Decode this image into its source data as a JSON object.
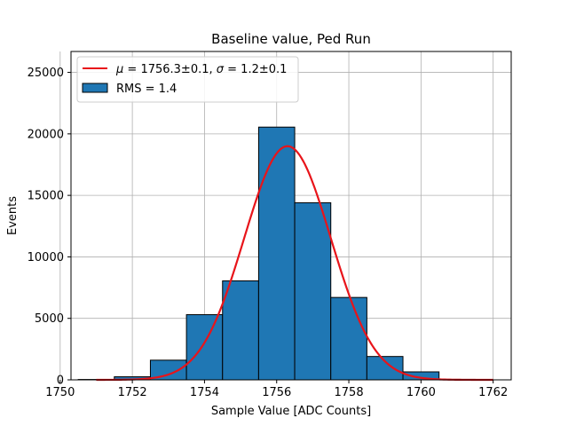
{
  "chart_data": {
    "type": "bar",
    "title": "Baseline value, Ped Run",
    "xlabel": "Sample Value [ADC Counts]",
    "ylabel": "Events",
    "xlim": [
      1750.3,
      1762.5
    ],
    "ylim": [
      0,
      26700
    ],
    "xticks": [
      1750,
      1752,
      1754,
      1756,
      1758,
      1760,
      1762
    ],
    "yticks": [
      0,
      5000,
      10000,
      15000,
      20000,
      25000
    ],
    "grid": true,
    "legend_position": "top-left",
    "colors": {
      "bars": "#1f77b4",
      "fit": "#e8141a",
      "edge": "#000000"
    },
    "histogram": {
      "name": "RMS = 1.4",
      "bins": [
        {
          "x0": 1750.5,
          "x1": 1751.5,
          "value": 30
        },
        {
          "x0": 1751.5,
          "x1": 1752.5,
          "value": 250
        },
        {
          "x0": 1752.5,
          "x1": 1753.5,
          "value": 1600
        },
        {
          "x0": 1753.5,
          "x1": 1754.5,
          "value": 5300
        },
        {
          "x0": 1754.5,
          "x1": 1755.5,
          "value": 8050
        },
        {
          "x0": 1755.5,
          "x1": 1756.5,
          "value": 20550
        },
        {
          "x0": 1756.5,
          "x1": 1757.5,
          "value": 14400
        },
        {
          "x0": 1757.5,
          "x1": 1758.5,
          "value": 6700
        },
        {
          "x0": 1758.5,
          "x1": 1759.5,
          "value": 1900
        },
        {
          "x0": 1759.5,
          "x1": 1760.5,
          "value": 650
        },
        {
          "x0": 1760.5,
          "x1": 1761.5,
          "value": 40
        }
      ]
    },
    "fit": {
      "label_mu": "μ",
      "label_rest": " = 1756.3±0.1, ",
      "label_sigma": "σ",
      "label_end": " = 1.2±0.1",
      "mu": 1756.3,
      "sigma": 1.2,
      "amplitude": 19000,
      "x_range": [
        1751,
        1762
      ]
    }
  }
}
